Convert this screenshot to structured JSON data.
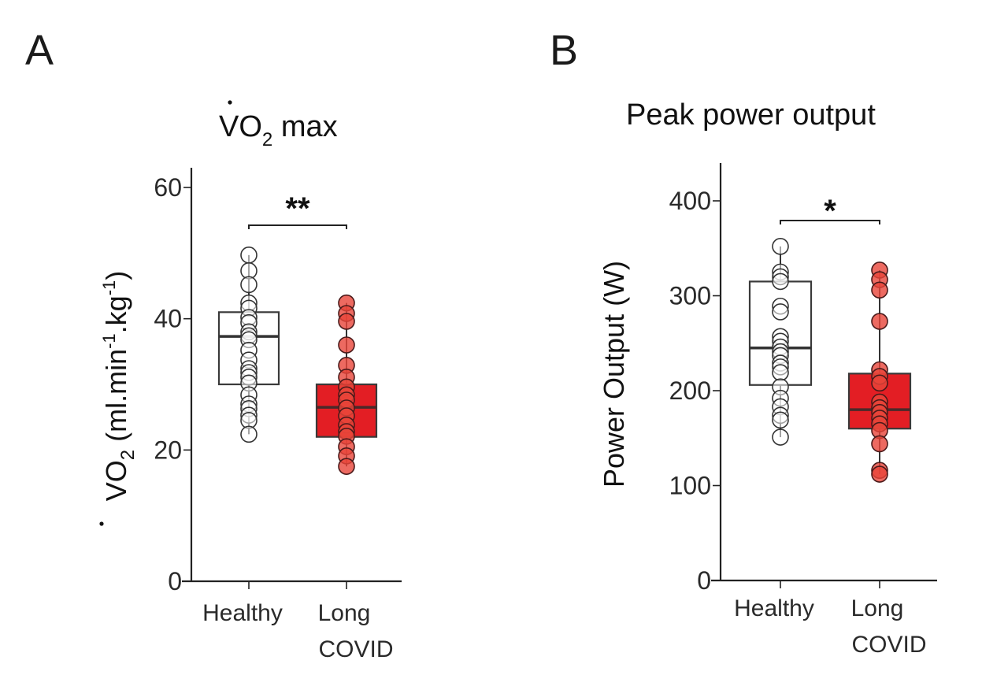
{
  "chart_data": [
    {
      "type": "box",
      "panel_letter": "A",
      "title": "V̇O₂ max",
      "title_parts": {
        "main": "VO",
        "sub": "2",
        "rest": " max"
      },
      "xlabel": "",
      "ylabel": "V̇O₂ (ml.min⁻¹.kg⁻¹)",
      "ylabel_parts": {
        "main": "VO",
        "sub": "2",
        "unit_a": " (ml.min",
        "sup1": "-1",
        "unit_b": ".kg",
        "sup2": "-1",
        "unit_c": ")"
      },
      "ylim": [
        0,
        60
      ],
      "yticks": [
        0,
        20,
        40,
        60
      ],
      "categories": [
        "Healthy",
        "Long COVID"
      ],
      "category_lines": [
        [
          "Healthy"
        ],
        [
          "Long",
          "COVID"
        ]
      ],
      "grid": false,
      "significance": {
        "between": [
          "Healthy",
          "Long COVID"
        ],
        "label": "**"
      },
      "series": [
        {
          "name": "Healthy",
          "color": "#ffffff",
          "point_color": "#ffffff",
          "box": {
            "q1": 30.0,
            "median": 37.3,
            "q3": 41.0,
            "whisker_low": 22.4,
            "whisker_high": 49.7
          },
          "points": [
            49.7,
            47.3,
            45.2,
            42.4,
            41.6,
            40.2,
            39.4,
            38.0,
            37.4,
            36.8,
            35.2,
            33.7,
            32.4,
            31.8,
            31.1,
            30.2,
            28.4,
            27.0,
            26.3,
            25.3,
            24.5,
            22.4
          ]
        },
        {
          "name": "Long COVID",
          "color": "#e31e24",
          "point_color": "#e8453a",
          "box": {
            "q1": 22.0,
            "median": 26.5,
            "q3": 30.0,
            "whisker_low": 17.5,
            "whisker_high": 42.4
          },
          "points": [
            42.4,
            40.8,
            39.6,
            36.0,
            32.9,
            31.1,
            29.6,
            28.4,
            27.6,
            26.4,
            25.2,
            23.8,
            22.8,
            22.1,
            20.5,
            19.1,
            17.5
          ]
        }
      ]
    },
    {
      "type": "box",
      "panel_letter": "B",
      "title": "Peak power output",
      "xlabel": "",
      "ylabel": "Power Output (W)",
      "ylim": [
        0,
        400
      ],
      "yticks": [
        0,
        100,
        200,
        300,
        400
      ],
      "categories": [
        "Healthy",
        "Long COVID"
      ],
      "category_lines": [
        [
          "Healthy"
        ],
        [
          "Long",
          "COVID"
        ]
      ],
      "grid": false,
      "significance": {
        "between": [
          "Healthy",
          "Long COVID"
        ],
        "label": "*"
      },
      "series": [
        {
          "name": "Healthy",
          "color": "#ffffff",
          "point_color": "#ffffff",
          "box": {
            "q1": 206,
            "median": 245,
            "q3": 315,
            "whisker_low": 151,
            "whisker_high": 352
          },
          "points": [
            352,
            325,
            320,
            315,
            289,
            283,
            257,
            252,
            246,
            241,
            237,
            229,
            225,
            219,
            204,
            192,
            183,
            174,
            169,
            151
          ]
        },
        {
          "name": "Long COVID",
          "color": "#e31e24",
          "point_color": "#e8453a",
          "box": {
            "q1": 160,
            "median": 180,
            "q3": 218,
            "whisker_low": 112,
            "whisker_high": 327
          },
          "points": [
            327,
            317,
            306,
            273,
            222,
            215,
            208,
            188,
            182,
            177,
            171,
            165,
            158,
            144,
            116,
            112
          ]
        }
      ]
    }
  ]
}
